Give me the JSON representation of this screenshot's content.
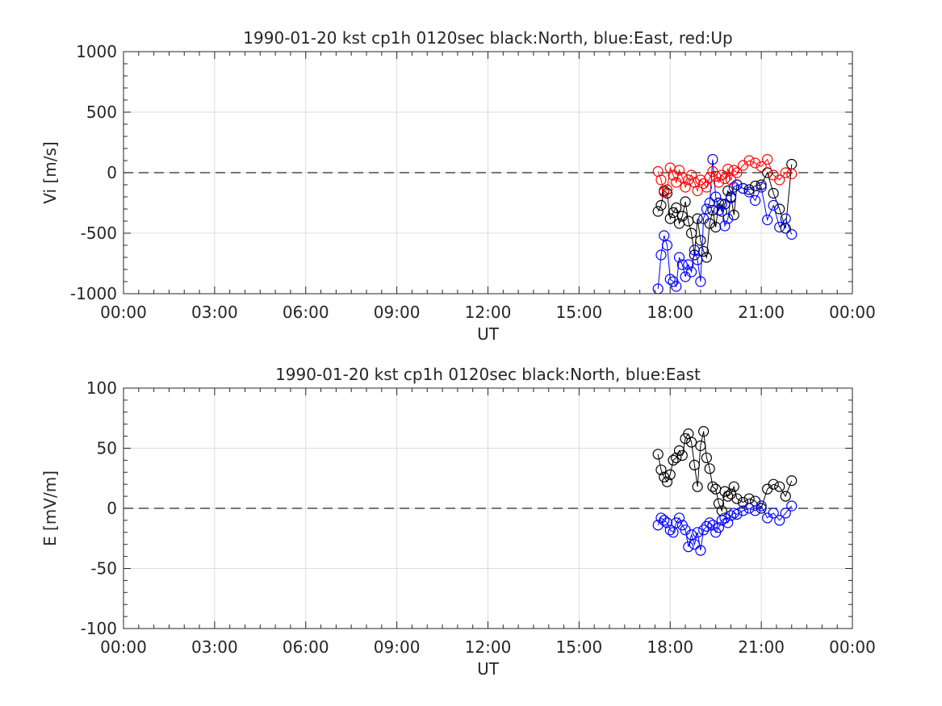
{
  "chart_data": [
    {
      "type": "scatter",
      "title": "1990-01-20 kst cp1h 0120sec black:North, blue:East, red:Up",
      "xlabel": "UT",
      "ylabel": "Vi [m/s]",
      "xlim": [
        0,
        24
      ],
      "ylim": [
        -1000,
        1000
      ],
      "x_ticks": [
        "00:00",
        "03:00",
        "06:00",
        "09:00",
        "12:00",
        "15:00",
        "18:00",
        "21:00",
        "00:00"
      ],
      "y_ticks": [
        "1000",
        "500",
        "0",
        "-500",
        "-1000"
      ],
      "grid": true,
      "reference_line": 0,
      "series": [
        {
          "name": "North",
          "color": "#000000",
          "marker": "open-circle",
          "connected": true,
          "x": [
            17.6,
            17.7,
            17.8,
            17.9,
            18.0,
            18.1,
            18.2,
            18.3,
            18.4,
            18.5,
            18.6,
            18.7,
            18.8,
            18.9,
            19.0,
            19.1,
            19.2,
            19.3,
            19.4,
            19.5,
            19.6,
            19.7,
            19.8,
            19.9,
            20.0,
            20.1,
            20.2,
            20.4,
            20.6,
            20.8,
            21.0,
            21.2,
            21.4,
            21.6,
            21.8,
            22.0
          ],
          "y": [
            -320,
            -270,
            -150,
            -170,
            -380,
            -330,
            -290,
            -420,
            -360,
            -240,
            -400,
            -500,
            -680,
            -380,
            -560,
            -650,
            -700,
            -420,
            -310,
            -450,
            -250,
            -320,
            -260,
            -150,
            -200,
            -350,
            -100,
            -130,
            -140,
            -110,
            -100,
            0,
            -170,
            -300,
            -460,
            70
          ]
        },
        {
          "name": "East",
          "color": "#0000ff",
          "marker": "open-circle",
          "connected": true,
          "x": [
            17.6,
            17.7,
            17.8,
            17.9,
            18.0,
            18.1,
            18.2,
            18.3,
            18.4,
            18.5,
            18.6,
            18.7,
            18.8,
            18.9,
            19.0,
            19.1,
            19.2,
            19.3,
            19.4,
            19.5,
            19.6,
            19.7,
            19.8,
            19.9,
            20.0,
            20.1,
            20.2,
            20.4,
            20.6,
            20.8,
            21.0,
            21.2,
            21.4,
            21.6,
            21.8,
            22.0
          ],
          "y": [
            -960,
            -680,
            -520,
            -600,
            -880,
            -900,
            -940,
            -700,
            -760,
            -860,
            -760,
            -820,
            -640,
            -720,
            -900,
            -380,
            -300,
            -250,
            110,
            -200,
            -310,
            -260,
            -440,
            -380,
            -210,
            -120,
            -100,
            -130,
            -160,
            -230,
            -120,
            -390,
            -270,
            -450,
            -380,
            -510
          ]
        },
        {
          "name": "Up",
          "color": "#ff0000",
          "marker": "open-circle",
          "connected": true,
          "x": [
            17.6,
            17.7,
            17.8,
            17.9,
            18.0,
            18.1,
            18.2,
            18.3,
            18.4,
            18.5,
            18.6,
            18.7,
            18.8,
            18.9,
            19.0,
            19.1,
            19.2,
            19.3,
            19.4,
            19.5,
            19.6,
            19.7,
            19.8,
            19.9,
            20.0,
            20.1,
            20.2,
            20.4,
            20.6,
            20.8,
            21.0,
            21.2,
            21.4,
            21.6,
            21.8,
            22.0
          ],
          "y": [
            10,
            -60,
            -160,
            -140,
            40,
            -20,
            -80,
            20,
            -40,
            -120,
            -60,
            -20,
            -80,
            -150,
            -60,
            -90,
            -120,
            -40,
            10,
            -30,
            -80,
            -20,
            -50,
            30,
            -60,
            20,
            0,
            60,
            100,
            80,
            50,
            110,
            -20,
            -60,
            0,
            -10
          ]
        }
      ]
    },
    {
      "type": "scatter",
      "title": "1990-01-20 kst cp1h 0120sec black:North, blue:East",
      "xlabel": "UT",
      "ylabel": "E [mV/m]",
      "xlim": [
        0,
        24
      ],
      "ylim": [
        -100,
        100
      ],
      "x_ticks": [
        "00:00",
        "03:00",
        "06:00",
        "09:00",
        "12:00",
        "15:00",
        "18:00",
        "21:00",
        "00:00"
      ],
      "y_ticks": [
        "100",
        "50",
        "0",
        "-50",
        "-100"
      ],
      "grid": true,
      "reference_line": 0,
      "series": [
        {
          "name": "North",
          "color": "#000000",
          "marker": "open-circle",
          "connected": true,
          "x": [
            17.6,
            17.7,
            17.8,
            17.9,
            18.0,
            18.1,
            18.2,
            18.3,
            18.4,
            18.5,
            18.6,
            18.7,
            18.8,
            18.9,
            19.0,
            19.1,
            19.2,
            19.3,
            19.4,
            19.5,
            19.6,
            19.7,
            19.8,
            19.9,
            20.0,
            20.1,
            20.2,
            20.4,
            20.6,
            20.8,
            21.0,
            21.2,
            21.4,
            21.6,
            21.8,
            22.0
          ],
          "y": [
            45,
            32,
            26,
            22,
            28,
            40,
            42,
            48,
            44,
            58,
            62,
            55,
            36,
            18,
            52,
            64,
            42,
            33,
            18,
            16,
            4,
            -2,
            14,
            10,
            12,
            18,
            8,
            5,
            8,
            6,
            0,
            16,
            20,
            18,
            10,
            23
          ]
        },
        {
          "name": "East",
          "color": "#0000ff",
          "marker": "open-circle",
          "connected": true,
          "x": [
            17.6,
            17.7,
            17.8,
            17.9,
            18.0,
            18.1,
            18.2,
            18.3,
            18.4,
            18.5,
            18.6,
            18.7,
            18.8,
            18.9,
            19.0,
            19.1,
            19.2,
            19.3,
            19.4,
            19.5,
            19.6,
            19.7,
            19.8,
            19.9,
            20.0,
            20.1,
            20.2,
            20.4,
            20.6,
            20.8,
            21.0,
            21.2,
            21.4,
            21.6,
            21.8,
            22.0
          ],
          "y": [
            -14,
            -8,
            -10,
            -12,
            -18,
            -20,
            -12,
            -8,
            -14,
            -18,
            -32,
            -22,
            -30,
            -20,
            -35,
            -18,
            -15,
            -12,
            -14,
            -20,
            -16,
            -10,
            -8,
            -12,
            -6,
            -4,
            -5,
            -2,
            0,
            -2,
            2,
            -8,
            -4,
            -10,
            -4,
            2
          ]
        }
      ]
    }
  ]
}
